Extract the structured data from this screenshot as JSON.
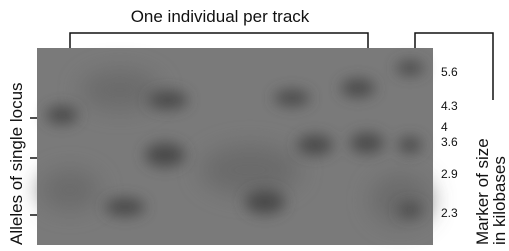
{
  "header": {
    "title": "One individual per track"
  },
  "left_label": "Alleles of single locus",
  "right_label": {
    "line1": "Marker of size",
    "line2": "in kilobases"
  },
  "markers": [
    "5.6",
    "4.3",
    "4",
    "3.6",
    "2.9",
    "2.3"
  ]
}
